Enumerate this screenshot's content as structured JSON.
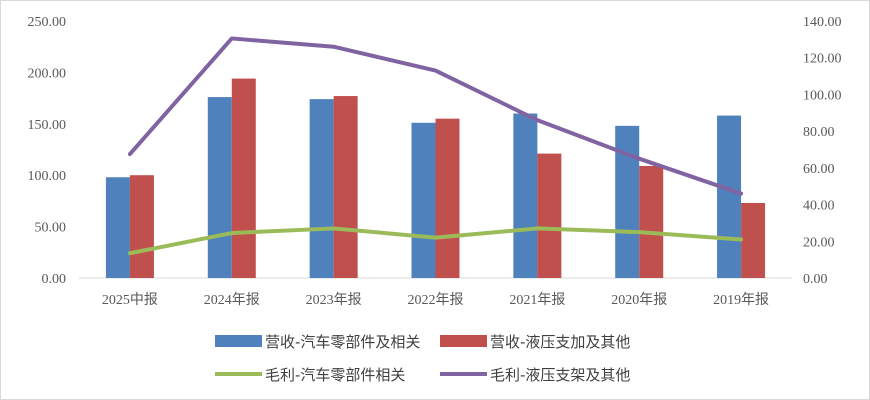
{
  "chart_data": {
    "type": "bar",
    "categories": [
      "2025中报",
      "2024年报",
      "2023年报",
      "2022年报",
      "2021年报",
      "2020年报",
      "2019年报"
    ],
    "series": [
      {
        "name": "营收-汽车零部件及相关",
        "kind": "bar",
        "axis": "left",
        "color": "#4f81bd",
        "values": [
          98,
          176,
          174,
          151,
          160,
          148,
          158
        ]
      },
      {
        "name": "营收-液压支加及其他",
        "kind": "bar",
        "axis": "left",
        "color": "#c0504d",
        "values": [
          100,
          194,
          177,
          155,
          121,
          109,
          73
        ]
      },
      {
        "name": "毛利-汽车零部件相关",
        "kind": "line",
        "axis": "right",
        "color": "#9bbb59",
        "values": [
          13.5,
          24.5,
          27,
          22,
          27,
          25,
          21
        ]
      },
      {
        "name": "毛利-液压支架及其他",
        "kind": "line",
        "axis": "right",
        "color": "#8064a2",
        "values": [
          67.5,
          130.5,
          126,
          113,
          86,
          65,
          46
        ]
      }
    ],
    "y_left": {
      "min": 0,
      "max": 250,
      "step": 50,
      "ticks": [
        "0.00",
        "50.00",
        "100.00",
        "150.00",
        "200.00",
        "250.00"
      ]
    },
    "y_right": {
      "min": 0,
      "max": 140,
      "step": 20,
      "ticks": [
        "0.00",
        "20.00",
        "40.00",
        "60.00",
        "80.00",
        "100.00",
        "120.00",
        "140.00"
      ]
    },
    "grid": false,
    "legend_position": "bottom"
  }
}
